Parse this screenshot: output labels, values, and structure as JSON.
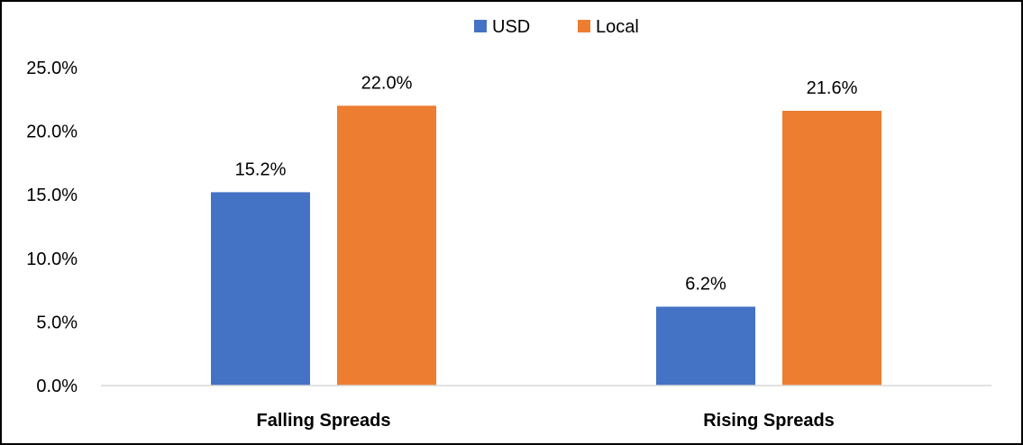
{
  "chart_data": {
    "type": "bar",
    "categories": [
      "Falling Spreads",
      "Rising Spreads"
    ],
    "series": [
      {
        "name": "USD",
        "values": [
          15.2,
          6.2
        ],
        "labels": [
          "15.2%",
          "6.2%"
        ],
        "color": "#4472C4"
      },
      {
        "name": "Local",
        "values": [
          22.0,
          21.6
        ],
        "labels": [
          "22.0%",
          "21.6%"
        ],
        "color": "#ED7D31"
      }
    ],
    "ylim": [
      0,
      25
    ],
    "yticks": [
      "0.0%",
      "5.0%",
      "10.0%",
      "15.0%",
      "20.0%",
      "25.0%"
    ],
    "legend_position": "top-center",
    "grid": false
  }
}
